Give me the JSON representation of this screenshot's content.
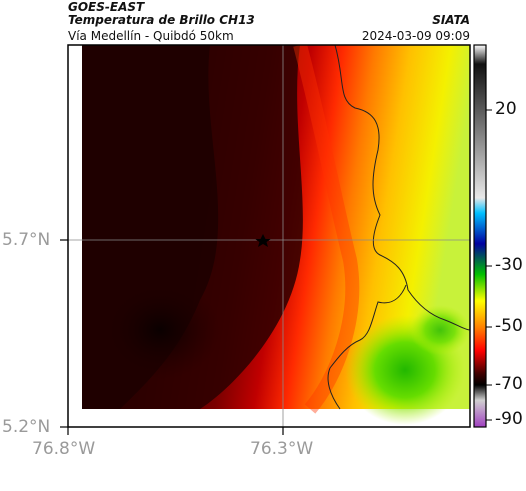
{
  "header": {
    "satellite": "GOES-EAST",
    "product": "Temperatura de Brillo CH13",
    "location": "Vía Medellín - Quibdó 50km",
    "organization": "SIATA",
    "timestamp": "2024-03-09 09:09"
  },
  "axes": {
    "lat_ticks": [
      "5.7°N",
      "5.2°N"
    ],
    "lon_ticks": [
      "76.8°W",
      "76.3°W"
    ]
  },
  "colorbar": {
    "ticks": [
      "20",
      "-30",
      "-50",
      "-70",
      "-90"
    ]
  },
  "colors": {
    "warm": "#d9f23a",
    "cold": "#1a0000",
    "coast": "#222222"
  }
}
